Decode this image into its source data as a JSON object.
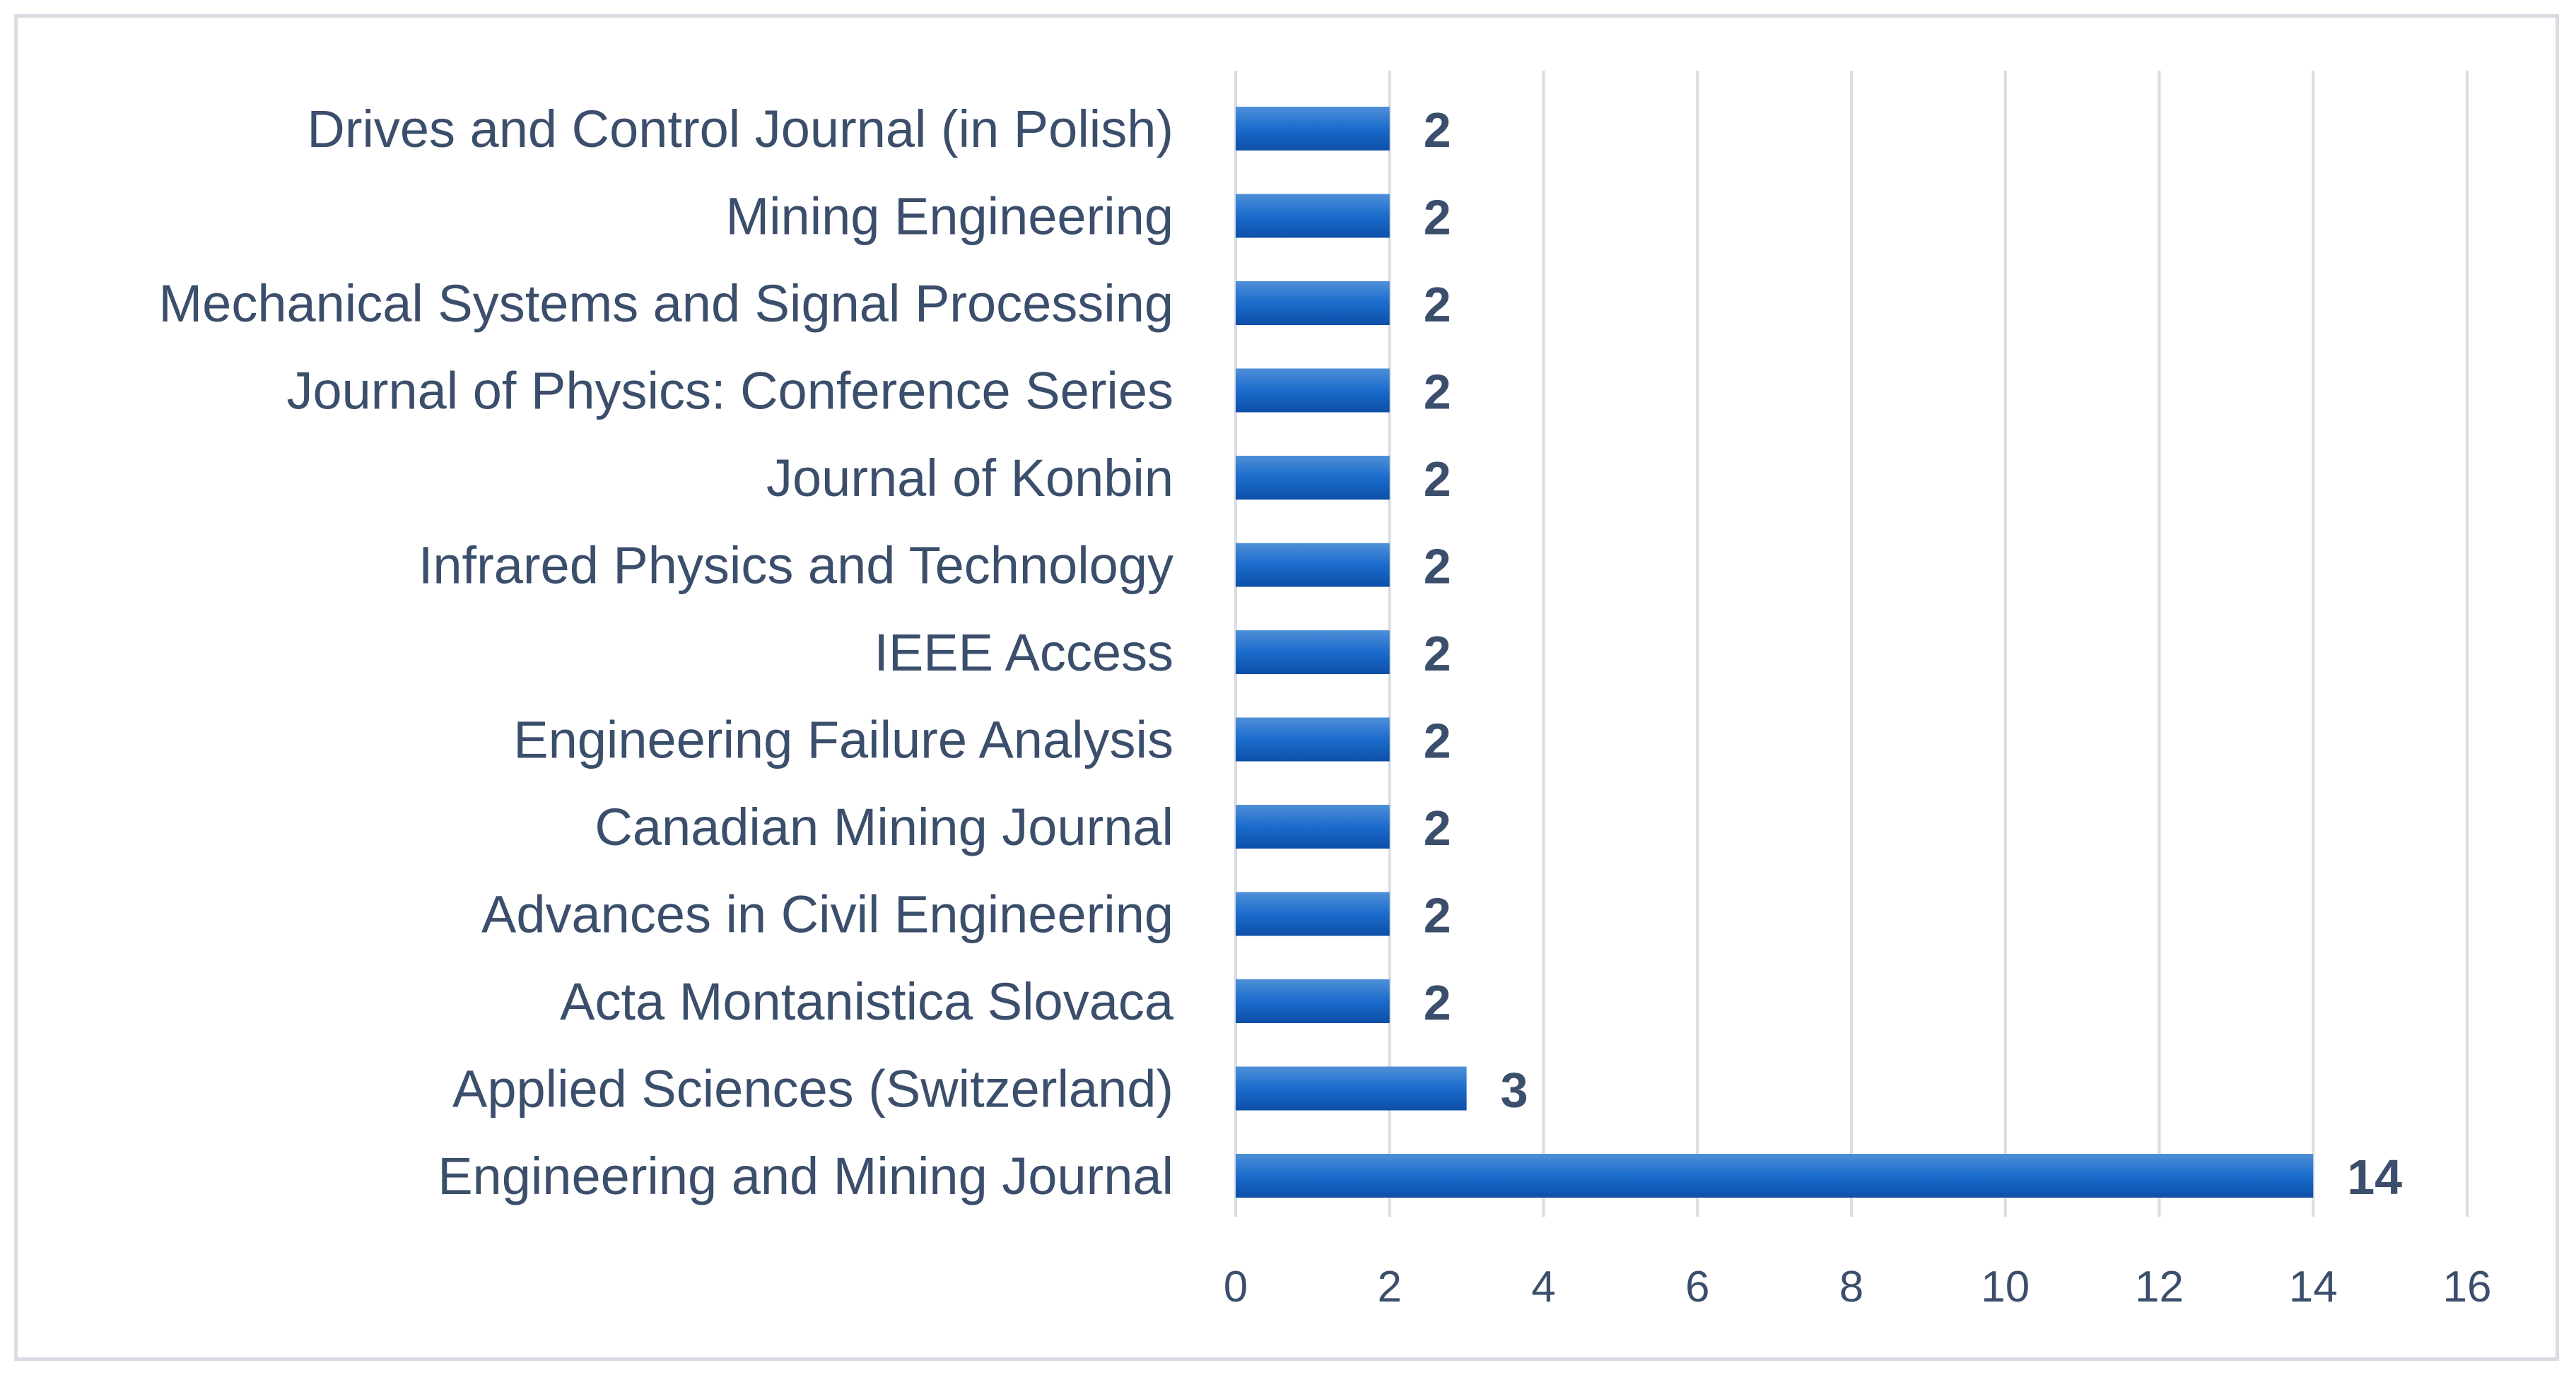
{
  "chart_data": {
    "type": "bar",
    "orientation": "horizontal",
    "title": "",
    "xlabel": "",
    "ylabel": "",
    "categories": [
      "Drives and Control Journal (in Polish)",
      "Mining Engineering",
      "Mechanical Systems and Signal Processing",
      "Journal of Physics: Conference Series",
      "Journal of Konbin",
      "Infrared Physics and Technology",
      "IEEE Access",
      "Engineering Failure Analysis",
      "Canadian Mining Journal",
      "Advances in Civil Engineering",
      "Acta Montanistica Slovaca",
      "Applied Sciences (Switzerland)",
      "Engineering and Mining Journal"
    ],
    "values": [
      2,
      2,
      2,
      2,
      2,
      2,
      2,
      2,
      2,
      2,
      2,
      3,
      14
    ],
    "xlim": [
      0,
      16
    ],
    "xticks": [
      0,
      2,
      4,
      6,
      8,
      10,
      12,
      14,
      16
    ],
    "grid": true,
    "bar_color": "#1565c0",
    "bar_color_light": "#4f8fd8",
    "text_color": "#3b4e6b",
    "grid_color": "#d9dde3"
  }
}
